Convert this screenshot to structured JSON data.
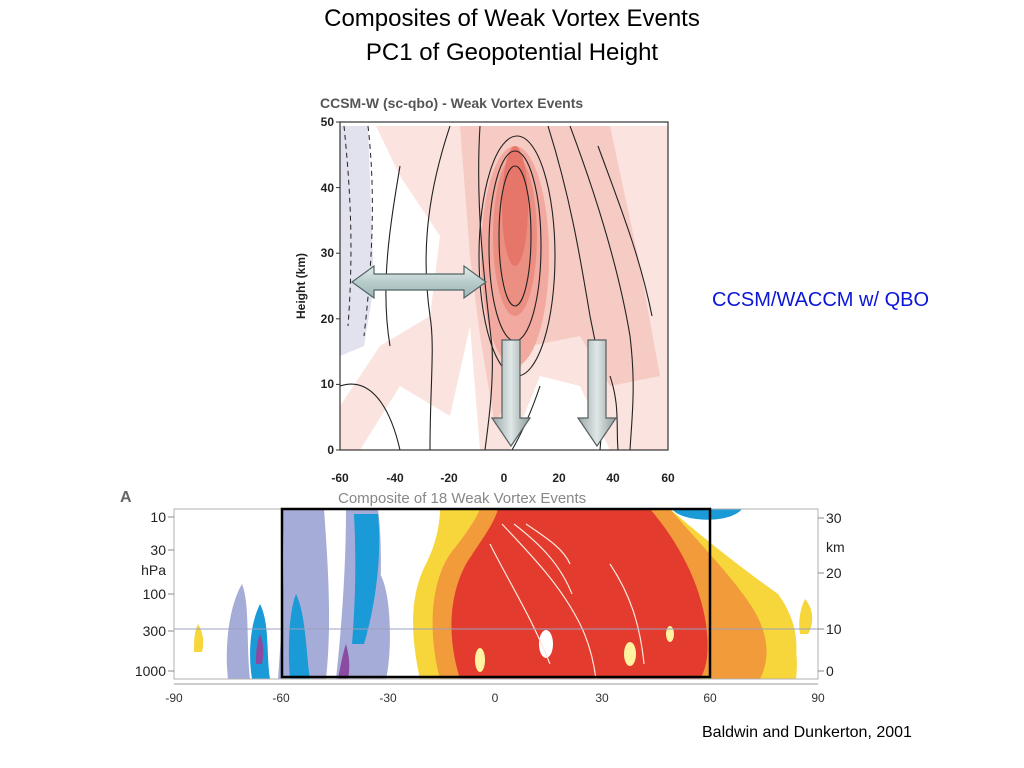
{
  "slide": {
    "title_line1": "Composites of Weak Vortex Events",
    "title_line2": "PC1 of Geopotential Height",
    "model_label": "CCSM/WACCM w/ QBO",
    "credit": "Baldwin and Dunkerton, 2001"
  },
  "top_panel": {
    "title": "CCSM-W (sc-qbo) - Weak Vortex Events",
    "ylabel": "Height (km)",
    "yticks": [
      "50",
      "40",
      "30",
      "20",
      "10",
      "0"
    ],
    "xticks": [
      "-60",
      "-40",
      "-20",
      "0",
      "20",
      "40",
      "60"
    ]
  },
  "bottom_panel": {
    "panel_letter": "A",
    "title": "Composite of 18 Weak Vortex Events",
    "left_ticks": [
      "10",
      "30",
      "100",
      "300",
      "1000"
    ],
    "left_unit": "hPa",
    "right_ticks": [
      "30",
      "20",
      "10",
      "0"
    ],
    "right_unit": "km",
    "xticks": [
      "-90",
      "-60",
      "-30",
      "0",
      "30",
      "60",
      "90"
    ]
  },
  "colors": {
    "title_blue": "#0b16d8",
    "positive_red": "#e33b2e",
    "positive_orange": "#f29b3b",
    "positive_yellow": "#f7d63c",
    "negative_blue": "#1a9ad6",
    "negative_lavender": "#a6acd8",
    "top_pink": "#f3c3bd"
  }
}
